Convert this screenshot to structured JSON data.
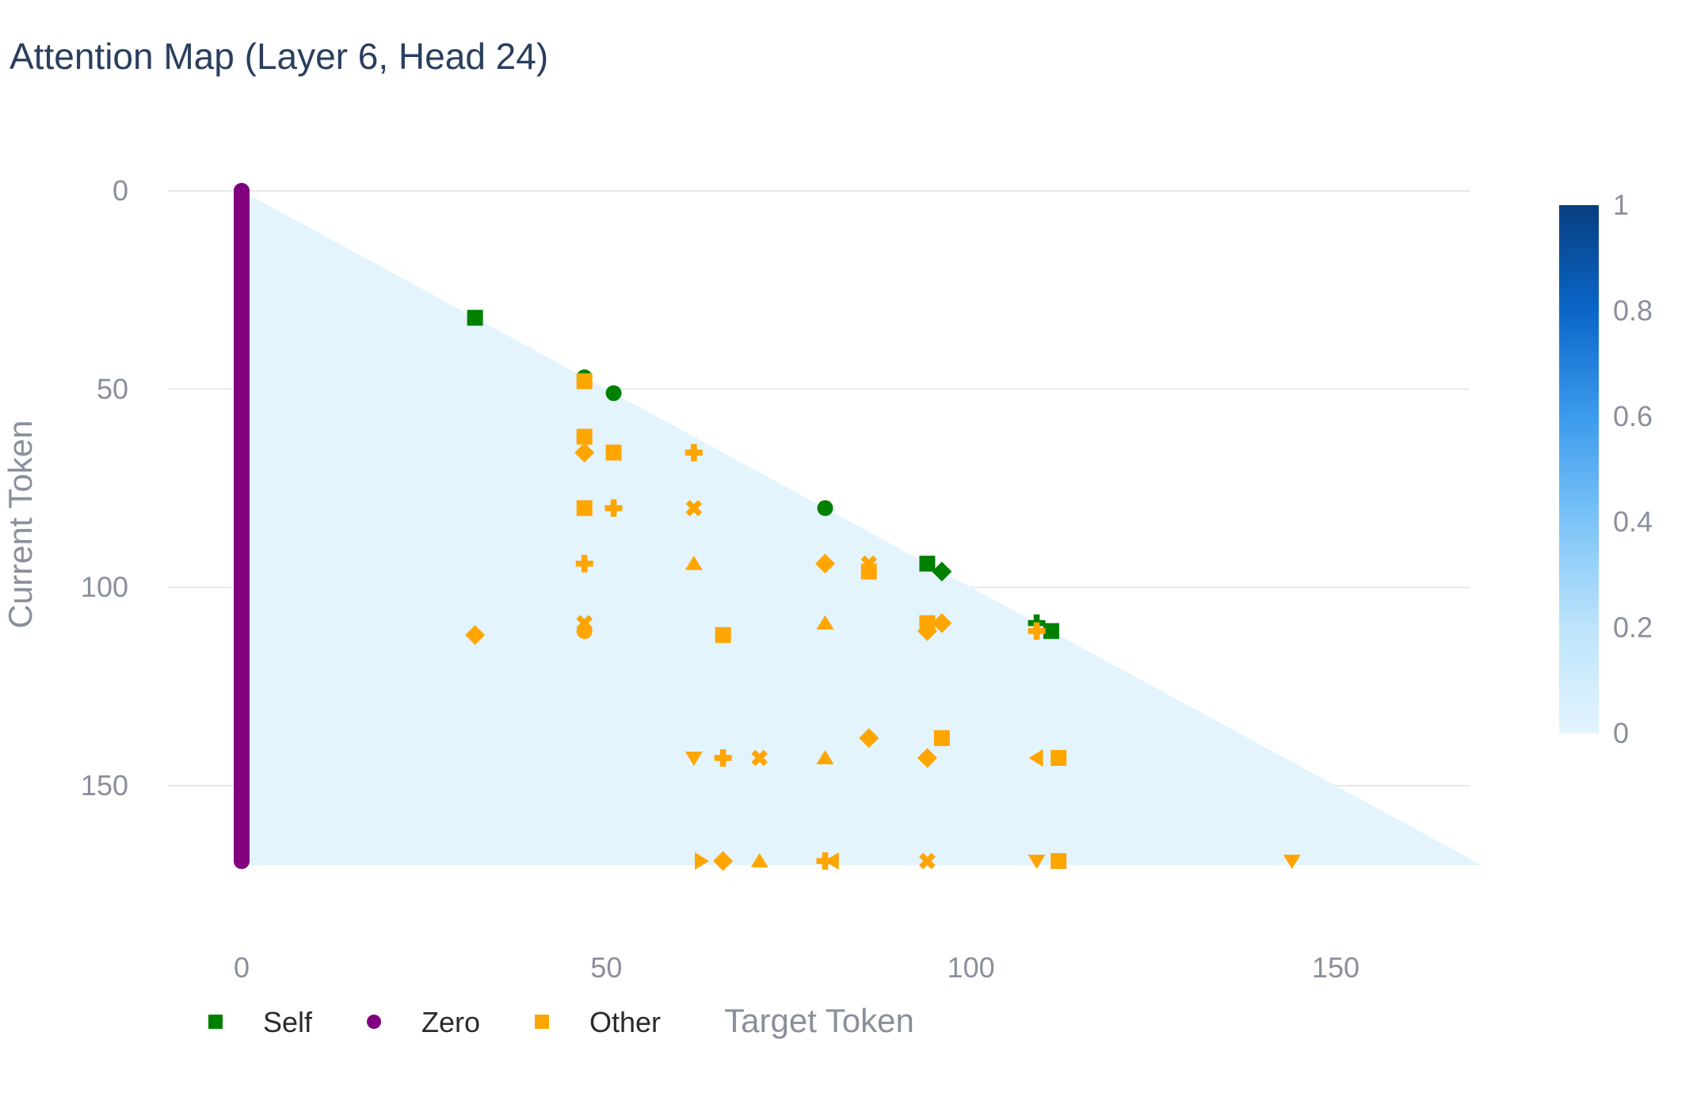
{
  "chart_data": {
    "type": "heatmap",
    "title": "Attention Map (Layer 6, Head 24)",
    "xlabel": "Target Token",
    "ylabel": "Current Token",
    "xlim": [
      -20,
      170
    ],
    "ylim": [
      0,
      170
    ],
    "x_ticks": [
      0,
      50,
      100,
      150
    ],
    "y_ticks": [
      0,
      50,
      100,
      150
    ],
    "grid": true,
    "n_tokens": 170,
    "heatmap_base_value": 0.03,
    "colorscale": [
      "#e3f4fd",
      "#bde4fb",
      "#7cc4f8",
      "#3c9bec",
      "#0a66c9",
      "#083f80"
    ],
    "colorbar": {
      "ticks": [
        0,
        0.2,
        0.4,
        0.6,
        0.8,
        1
      ],
      "range": [
        0,
        1
      ]
    },
    "legend": [
      {
        "name": "Self",
        "color": "#008000",
        "symbol": "square"
      },
      {
        "name": "Zero",
        "color": "#800080",
        "symbol": "circle"
      },
      {
        "name": "Other",
        "color": "#ffa500",
        "symbol": "square"
      }
    ],
    "legend_placement": "bottom-left",
    "series": [
      {
        "name": "Zero",
        "color": "#800080",
        "points": [
          {
            "x": 0,
            "y": 0,
            "s": "circle"
          },
          {
            "x": 0,
            "y": 4,
            "s": "circle"
          },
          {
            "x": 0,
            "y": 8,
            "s": "circle"
          },
          {
            "x": 0,
            "y": 12,
            "s": "circle"
          },
          {
            "x": 0,
            "y": 16,
            "s": "circle"
          },
          {
            "x": 0,
            "y": 20,
            "s": "circle"
          },
          {
            "x": 0,
            "y": 24,
            "s": "circle"
          },
          {
            "x": 0,
            "y": 28,
            "s": "circle"
          },
          {
            "x": 0,
            "y": 32,
            "s": "circle"
          },
          {
            "x": 0,
            "y": 36,
            "s": "circle"
          },
          {
            "x": 0,
            "y": 40,
            "s": "circle"
          },
          {
            "x": 0,
            "y": 44,
            "s": "circle"
          },
          {
            "x": 0,
            "y": 47,
            "s": "circle"
          },
          {
            "x": 0,
            "y": 51,
            "s": "circle"
          },
          {
            "x": 0,
            "y": 55,
            "s": "circle"
          },
          {
            "x": 0,
            "y": 59,
            "s": "circle"
          },
          {
            "x": 0,
            "y": 63,
            "s": "circle"
          },
          {
            "x": 0,
            "y": 67,
            "s": "circle"
          },
          {
            "x": 0,
            "y": 71,
            "s": "circle"
          },
          {
            "x": 0,
            "y": 75,
            "s": "circle"
          },
          {
            "x": 0,
            "y": 80,
            "s": "circle"
          },
          {
            "x": 0,
            "y": 84,
            "s": "circle"
          },
          {
            "x": 0,
            "y": 88,
            "s": "circle"
          },
          {
            "x": 0,
            "y": 92,
            "s": "circle"
          },
          {
            "x": 0,
            "y": 96,
            "s": "circle"
          },
          {
            "x": 0,
            "y": 100,
            "s": "circle"
          },
          {
            "x": 0,
            "y": 104,
            "s": "circle"
          },
          {
            "x": 0,
            "y": 108,
            "s": "circle"
          },
          {
            "x": 0,
            "y": 112,
            "s": "circle"
          },
          {
            "x": 0,
            "y": 116,
            "s": "circle"
          },
          {
            "x": 0,
            "y": 120,
            "s": "circle"
          },
          {
            "x": 0,
            "y": 124,
            "s": "circle"
          },
          {
            "x": 0,
            "y": 128,
            "s": "circle"
          },
          {
            "x": 0,
            "y": 132,
            "s": "circle"
          },
          {
            "x": 0,
            "y": 136,
            "s": "circle"
          },
          {
            "x": 0,
            "y": 140,
            "s": "circle"
          },
          {
            "x": 0,
            "y": 144,
            "s": "circle"
          },
          {
            "x": 0,
            "y": 148,
            "s": "circle"
          },
          {
            "x": 0,
            "y": 152,
            "s": "circle"
          },
          {
            "x": 0,
            "y": 156,
            "s": "circle"
          },
          {
            "x": 0,
            "y": 160,
            "s": "circle"
          },
          {
            "x": 0,
            "y": 164,
            "s": "circle"
          },
          {
            "x": 0,
            "y": 169,
            "s": "circle"
          }
        ]
      },
      {
        "name": "Self",
        "color": "#008000",
        "points": [
          {
            "x": 32,
            "y": 32,
            "s": "square"
          },
          {
            "x": 47,
            "y": 47,
            "s": "circle"
          },
          {
            "x": 51,
            "y": 51,
            "s": "circle"
          },
          {
            "x": 80,
            "y": 80,
            "s": "circle"
          },
          {
            "x": 94,
            "y": 94,
            "s": "square"
          },
          {
            "x": 96,
            "y": 96,
            "s": "diamond"
          },
          {
            "x": 109,
            "y": 109,
            "s": "cross"
          },
          {
            "x": 111,
            "y": 111,
            "s": "square"
          }
        ]
      },
      {
        "name": "Other",
        "color": "#ffa500",
        "points": [
          {
            "x": 47,
            "y": 48,
            "s": "square"
          },
          {
            "x": 47,
            "y": 62,
            "s": "square"
          },
          {
            "x": 47,
            "y": 66,
            "s": "diamond"
          },
          {
            "x": 51,
            "y": 66,
            "s": "square"
          },
          {
            "x": 62,
            "y": 66,
            "s": "cross"
          },
          {
            "x": 47,
            "y": 80,
            "s": "square"
          },
          {
            "x": 51,
            "y": 80,
            "s": "cross"
          },
          {
            "x": 62,
            "y": 80,
            "s": "x"
          },
          {
            "x": 47,
            "y": 94,
            "s": "cross"
          },
          {
            "x": 62,
            "y": 94,
            "s": "triangle-up"
          },
          {
            "x": 80,
            "y": 94,
            "s": "diamond"
          },
          {
            "x": 86,
            "y": 94,
            "s": "x"
          },
          {
            "x": 86,
            "y": 96,
            "s": "square"
          },
          {
            "x": 47,
            "y": 109,
            "s": "x"
          },
          {
            "x": 47,
            "y": 111,
            "s": "circle"
          },
          {
            "x": 32,
            "y": 112,
            "s": "diamond"
          },
          {
            "x": 66,
            "y": 112,
            "s": "square"
          },
          {
            "x": 80,
            "y": 109,
            "s": "triangle-up"
          },
          {
            "x": 94,
            "y": 109,
            "s": "square"
          },
          {
            "x": 94,
            "y": 111,
            "s": "diamond"
          },
          {
            "x": 96,
            "y": 109,
            "s": "diamond"
          },
          {
            "x": 109,
            "y": 111,
            "s": "cross"
          },
          {
            "x": 86,
            "y": 138,
            "s": "diamond"
          },
          {
            "x": 96,
            "y": 138,
            "s": "square"
          },
          {
            "x": 62,
            "y": 143,
            "s": "triangle-down"
          },
          {
            "x": 66,
            "y": 143,
            "s": "cross"
          },
          {
            "x": 71,
            "y": 143,
            "s": "x"
          },
          {
            "x": 80,
            "y": 143,
            "s": "triangle-up"
          },
          {
            "x": 94,
            "y": 143,
            "s": "diamond"
          },
          {
            "x": 109,
            "y": 143,
            "s": "triangle-left"
          },
          {
            "x": 112,
            "y": 143,
            "s": "square"
          },
          {
            "x": 63,
            "y": 169,
            "s": "triangle-right"
          },
          {
            "x": 66,
            "y": 169,
            "s": "diamond"
          },
          {
            "x": 71,
            "y": 169,
            "s": "triangle-up"
          },
          {
            "x": 80,
            "y": 169,
            "s": "cross"
          },
          {
            "x": 81,
            "y": 169,
            "s": "triangle-left"
          },
          {
            "x": 94,
            "y": 169,
            "s": "x"
          },
          {
            "x": 109,
            "y": 169,
            "s": "triangle-down"
          },
          {
            "x": 112,
            "y": 169,
            "s": "square"
          },
          {
            "x": 144,
            "y": 169,
            "s": "triangle-down"
          }
        ]
      }
    ]
  }
}
